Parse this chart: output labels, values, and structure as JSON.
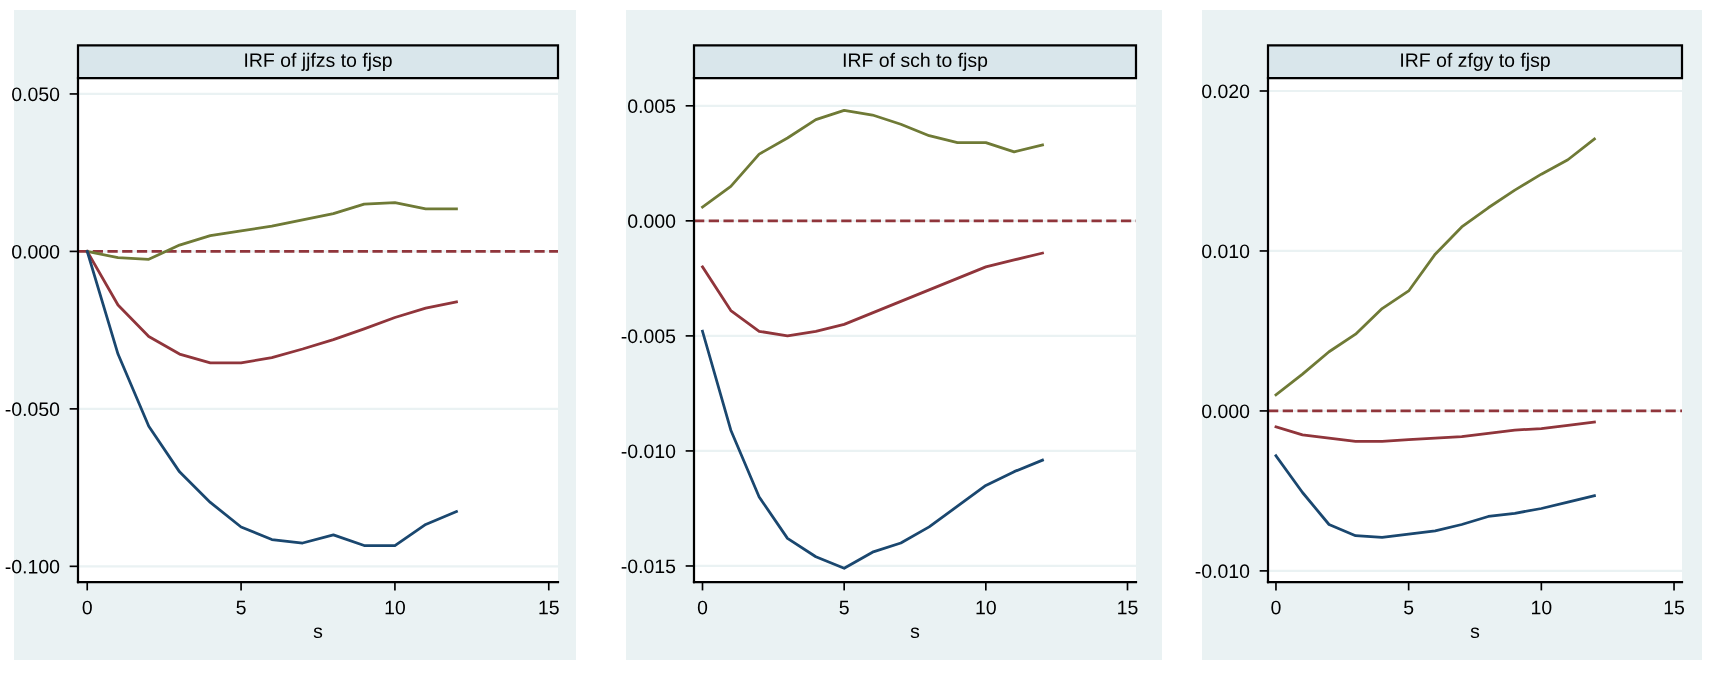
{
  "chart_data": [
    {
      "type": "line",
      "title": "IRF of jjfzs to fjsp",
      "xlabel": "s",
      "x": [
        0,
        1,
        2,
        3,
        4,
        5,
        6,
        7,
        8,
        9,
        10,
        11,
        12
      ],
      "series": [
        {
          "color": "#6f7a36",
          "values": [
            0,
            -0.002,
            -0.0025,
            0.002,
            0.005,
            0.0065,
            0.008,
            0.01,
            0.012,
            0.015,
            0.0155,
            0.0135,
            0.0135
          ]
        },
        {
          "color": "#90353b",
          "values": [
            0,
            -0.017,
            -0.027,
            -0.0326,
            -0.0354,
            -0.0354,
            -0.0337,
            -0.031,
            -0.028,
            -0.0246,
            -0.021,
            -0.018,
            -0.016
          ]
        },
        {
          "color": "#1a476f",
          "values": [
            0,
            -0.0326,
            -0.0555,
            -0.07,
            -0.0797,
            -0.0875,
            -0.0915,
            -0.0926,
            -0.09,
            -0.0934,
            -0.0934,
            -0.0867,
            -0.0826
          ]
        }
      ],
      "xlim": [
        -0.3,
        15.3
      ],
      "ylim": [
        -0.105,
        0.055
      ],
      "xticks": [
        0,
        5,
        10,
        15
      ],
      "yticks": [
        {
          "value": -0.1,
          "label": "-0.100"
        },
        {
          "value": -0.05,
          "label": "-0.050"
        },
        {
          "value": 0,
          "label": "0.000"
        },
        {
          "value": 0.05,
          "label": "0.050"
        }
      ],
      "grid": "y",
      "ref_lines": [
        {
          "axis": "y",
          "value": 0,
          "color": "#90353b",
          "line_style": "dashed"
        }
      ]
    },
    {
      "type": "line",
      "title": "IRF of sch to fjsp",
      "xlabel": "s",
      "x": [
        0,
        1,
        2,
        3,
        4,
        5,
        6,
        7,
        8,
        9,
        10,
        11,
        12
      ],
      "series": [
        {
          "color": "#6f7a36",
          "values": [
            0.0006,
            0.0015,
            0.0029,
            0.0036,
            0.0044,
            0.0048,
            0.0046,
            0.0042,
            0.0037,
            0.0034,
            0.0034,
            0.003,
            0.0033
          ]
        },
        {
          "color": "#90353b",
          "values": [
            -0.002,
            -0.0039,
            -0.0048,
            -0.005,
            -0.0048,
            -0.0045,
            -0.004,
            -0.0035,
            -0.003,
            -0.0025,
            -0.002,
            -0.0017,
            -0.0014
          ]
        },
        {
          "color": "#1a476f",
          "values": [
            -0.0048,
            -0.0091,
            -0.012,
            -0.0138,
            -0.0146,
            -0.0151,
            -0.0144,
            -0.014,
            -0.0133,
            -0.0124,
            -0.0115,
            -0.0109,
            -0.0104
          ]
        }
      ],
      "xlim": [
        -0.3,
        15.3
      ],
      "ylim": [
        -0.0157,
        0.0062
      ],
      "xticks": [
        0,
        5,
        10,
        15
      ],
      "yticks": [
        {
          "value": -0.015,
          "label": "-0.015"
        },
        {
          "value": -0.01,
          "label": "-0.010"
        },
        {
          "value": -0.005,
          "label": "-0.005"
        },
        {
          "value": 0,
          "label": "0.000"
        },
        {
          "value": 0.005,
          "label": "0.005"
        }
      ],
      "grid": "y",
      "ref_lines": [
        {
          "axis": "y",
          "value": 0,
          "color": "#90353b",
          "line_style": "dashed"
        }
      ]
    },
    {
      "type": "line",
      "title": "IRF of zfgy to fjsp",
      "xlabel": "s",
      "x": [
        0,
        1,
        2,
        3,
        4,
        5,
        6,
        7,
        8,
        9,
        10,
        11,
        12
      ],
      "series": [
        {
          "color": "#6f7a36",
          "values": [
            0.001,
            0.0023,
            0.0037,
            0.0048,
            0.0064,
            0.0075,
            0.0098,
            0.0115,
            0.0127,
            0.0138,
            0.0148,
            0.0157,
            0.017
          ]
        },
        {
          "color": "#90353b",
          "values": [
            -0.001,
            -0.0015,
            -0.0017,
            -0.0019,
            -0.0019,
            -0.0018,
            -0.0017,
            -0.0016,
            -0.0014,
            -0.0012,
            -0.0011,
            -0.0009,
            -0.0007
          ]
        },
        {
          "color": "#1a476f",
          "values": [
            -0.0028,
            -0.0051,
            -0.0071,
            -0.0078,
            -0.0079,
            -0.0077,
            -0.0075,
            -0.0071,
            -0.0066,
            -0.0064,
            -0.0061,
            -0.0057,
            -0.0053
          ]
        }
      ],
      "xlim": [
        -0.3,
        15.3
      ],
      "ylim": [
        -0.0107,
        0.0208
      ],
      "xticks": [
        0,
        5,
        10,
        15
      ],
      "yticks": [
        {
          "value": -0.01,
          "label": "-0.010"
        },
        {
          "value": 0,
          "label": "0.000"
        },
        {
          "value": 0.01,
          "label": "0.010"
        },
        {
          "value": 0.02,
          "label": "0.020"
        }
      ],
      "grid": "y",
      "ref_lines": [
        {
          "axis": "y",
          "value": 0,
          "color": "#90353b",
          "line_style": "dashed"
        }
      ]
    }
  ]
}
